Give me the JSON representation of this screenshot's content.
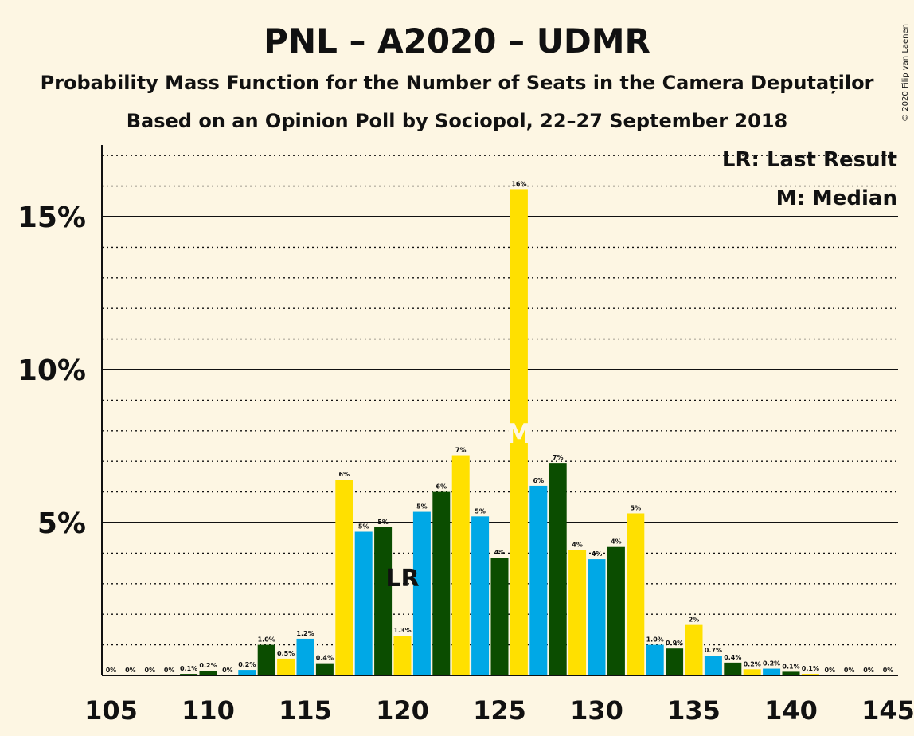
{
  "chart_data": {
    "type": "bar",
    "title": "PNL – A2020 – UDMR",
    "subtitle": "Probability Mass Function for the Number of Seats in the Camera Deputaților",
    "subtitle2": "Based on an Opinion Poll by Sociopol, 22–27 September 2018",
    "copyright": "© 2020 Filip van Laenen",
    "legend": {
      "lr": "LR: Last Result",
      "m": "M: Median",
      "position": "top-right"
    },
    "xlim": [
      105,
      145
    ],
    "ylim": [
      0,
      17
    ],
    "x_ticks": [
      105,
      110,
      115,
      120,
      125,
      130,
      135,
      140,
      145
    ],
    "y_ticks": [
      {
        "value": 5,
        "label": "5%"
      },
      {
        "value": 10,
        "label": "10%"
      },
      {
        "value": 15,
        "label": "15%"
      }
    ],
    "last_result": {
      "seats": 120,
      "label": "LR"
    },
    "median": {
      "seats": 126,
      "label": "M"
    },
    "colors": {
      "blue": "#00a8e6",
      "green": "#0b4d00",
      "yellow": "#ffe000"
    },
    "bars": [
      {
        "seats": 105,
        "value": 0,
        "label": "0%",
        "color": "blue"
      },
      {
        "seats": 106,
        "value": 0,
        "label": "0%",
        "color": "green"
      },
      {
        "seats": 107,
        "value": 0,
        "label": "0%",
        "color": "yellow"
      },
      {
        "seats": 108,
        "value": 0,
        "label": "0%",
        "color": "blue"
      },
      {
        "seats": 109,
        "value": 0.05,
        "label": "0.1%",
        "color": "green"
      },
      {
        "seats": 110,
        "value": 0.15,
        "label": "0.2%",
        "color": "green"
      },
      {
        "seats": 111,
        "value": 0,
        "label": "0%",
        "color": "blue"
      },
      {
        "seats": 112,
        "value": 0.18,
        "label": "0.2%",
        "color": "blue"
      },
      {
        "seats": 113,
        "value": 1.0,
        "label": "1.0%",
        "color": "green"
      },
      {
        "seats": 114,
        "value": 0.55,
        "label": "0.5%",
        "color": "yellow"
      },
      {
        "seats": 115,
        "value": 1.2,
        "label": "1.2%",
        "color": "blue"
      },
      {
        "seats": 116,
        "value": 0.4,
        "label": "0.4%",
        "color": "green"
      },
      {
        "seats": 117,
        "value": 6.4,
        "label": "6%",
        "color": "yellow"
      },
      {
        "seats": 118,
        "value": 4.7,
        "label": "5%",
        "color": "blue"
      },
      {
        "seats": 119,
        "value": 4.85,
        "label": "5%",
        "color": "green"
      },
      {
        "seats": 120,
        "value": 1.3,
        "label": "1.3%",
        "color": "yellow"
      },
      {
        "seats": 121,
        "value": 5.35,
        "label": "5%",
        "color": "blue"
      },
      {
        "seats": 122,
        "value": 6.0,
        "label": "6%",
        "color": "green"
      },
      {
        "seats": 123,
        "value": 7.2,
        "label": "7%",
        "color": "yellow"
      },
      {
        "seats": 124,
        "value": 5.2,
        "label": "5%",
        "color": "blue"
      },
      {
        "seats": 125,
        "value": 3.85,
        "label": "4%",
        "color": "green"
      },
      {
        "seats": 126,
        "value": 15.9,
        "label": "16%",
        "color": "yellow"
      },
      {
        "seats": 127,
        "value": 6.2,
        "label": "6%",
        "color": "blue"
      },
      {
        "seats": 128,
        "value": 6.95,
        "label": "7%",
        "color": "green"
      },
      {
        "seats": 129,
        "value": 4.1,
        "label": "4%",
        "color": "yellow"
      },
      {
        "seats": 130,
        "value": 3.8,
        "label": "4%",
        "color": "blue"
      },
      {
        "seats": 131,
        "value": 4.2,
        "label": "4%",
        "color": "green"
      },
      {
        "seats": 132,
        "value": 5.3,
        "label": "5%",
        "color": "yellow"
      },
      {
        "seats": 133,
        "value": 1.0,
        "label": "1.0%",
        "color": "blue"
      },
      {
        "seats": 134,
        "value": 0.88,
        "label": "0.9%",
        "color": "green"
      },
      {
        "seats": 135,
        "value": 1.65,
        "label": "2%",
        "color": "yellow"
      },
      {
        "seats": 136,
        "value": 0.65,
        "label": "0.7%",
        "color": "blue"
      },
      {
        "seats": 137,
        "value": 0.42,
        "label": "0.4%",
        "color": "green"
      },
      {
        "seats": 138,
        "value": 0.2,
        "label": "0.2%",
        "color": "yellow"
      },
      {
        "seats": 139,
        "value": 0.22,
        "label": "0.2%",
        "color": "blue"
      },
      {
        "seats": 140,
        "value": 0.12,
        "label": "0.1%",
        "color": "green"
      },
      {
        "seats": 141,
        "value": 0.05,
        "label": "0.1%",
        "color": "yellow"
      },
      {
        "seats": 142,
        "value": 0,
        "label": "0%",
        "color": "blue"
      },
      {
        "seats": 143,
        "value": 0,
        "label": "0%",
        "color": "green"
      },
      {
        "seats": 144,
        "value": 0,
        "label": "0%",
        "color": "yellow"
      },
      {
        "seats": 145,
        "value": 0,
        "label": "0%",
        "color": "blue"
      }
    ]
  }
}
